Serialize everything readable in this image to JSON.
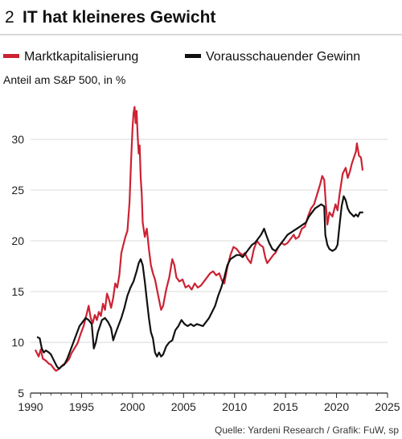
{
  "figure": {
    "number": "2",
    "title": "IT hat kleineres Gewicht",
    "source": "Quelle: Yardeni Research / Grafik: FuW, sp"
  },
  "colors": {
    "market_cap": "#cc2233",
    "forward_earnings": "#111111",
    "grid": "#d8d8d8",
    "axis": "#222222"
  },
  "chart_data": {
    "type": "line",
    "title": "IT hat kleineres Gewicht",
    "ylabel": "Anteil am S&P 500, in %",
    "xlabel": "",
    "xlim": [
      1990,
      2025
    ],
    "ylim": [
      5,
      35
    ],
    "xticks": [
      1990,
      1995,
      2000,
      2005,
      2010,
      2015,
      2020,
      2025
    ],
    "yticks": [
      5,
      10,
      15,
      20,
      25,
      30
    ],
    "grid": "horizontal",
    "legend_position": "top",
    "series": [
      {
        "name": "Marktkapitalisierung",
        "color": "#cc2233",
        "points": [
          [
            1990.5,
            9.2
          ],
          [
            1990.8,
            8.6
          ],
          [
            1991.0,
            9.3
          ],
          [
            1991.2,
            8.4
          ],
          [
            1991.5,
            8.2
          ],
          [
            1991.8,
            7.9
          ],
          [
            1992.0,
            7.8
          ],
          [
            1992.3,
            7.4
          ],
          [
            1992.5,
            7.2
          ],
          [
            1992.8,
            7.4
          ],
          [
            1993.0,
            7.6
          ],
          [
            1993.2,
            7.8
          ],
          [
            1993.5,
            8.0
          ],
          [
            1993.8,
            8.4
          ],
          [
            1994.0,
            8.9
          ],
          [
            1994.3,
            9.4
          ],
          [
            1994.6,
            9.9
          ],
          [
            1994.9,
            10.8
          ],
          [
            1995.2,
            11.6
          ],
          [
            1995.5,
            12.8
          ],
          [
            1995.7,
            13.6
          ],
          [
            1995.9,
            12.4
          ],
          [
            1996.1,
            11.9
          ],
          [
            1996.3,
            12.7
          ],
          [
            1996.5,
            12.2
          ],
          [
            1996.7,
            13.0
          ],
          [
            1996.9,
            12.6
          ],
          [
            1997.1,
            13.8
          ],
          [
            1997.3,
            13.2
          ],
          [
            1997.5,
            14.8
          ],
          [
            1997.7,
            14.2
          ],
          [
            1997.9,
            13.4
          ],
          [
            1998.1,
            14.4
          ],
          [
            1998.3,
            15.8
          ],
          [
            1998.5,
            15.4
          ],
          [
            1998.7,
            16.6
          ],
          [
            1998.9,
            18.8
          ],
          [
            1999.1,
            19.6
          ],
          [
            1999.3,
            20.4
          ],
          [
            1999.5,
            21.0
          ],
          [
            1999.7,
            23.8
          ],
          [
            1999.85,
            27.8
          ],
          [
            2000.0,
            31.2
          ],
          [
            2000.1,
            32.6
          ],
          [
            2000.2,
            33.2
          ],
          [
            2000.3,
            31.6
          ],
          [
            2000.4,
            32.8
          ],
          [
            2000.5,
            30.4
          ],
          [
            2000.6,
            28.6
          ],
          [
            2000.7,
            29.4
          ],
          [
            2000.8,
            26.2
          ],
          [
            2000.9,
            24.6
          ],
          [
            2001.0,
            21.8
          ],
          [
            2001.2,
            20.4
          ],
          [
            2001.4,
            21.2
          ],
          [
            2001.6,
            19.2
          ],
          [
            2001.8,
            17.6
          ],
          [
            2002.0,
            16.8
          ],
          [
            2002.2,
            16.2
          ],
          [
            2002.4,
            15.2
          ],
          [
            2002.6,
            14.2
          ],
          [
            2002.8,
            13.2
          ],
          [
            2003.0,
            13.6
          ],
          [
            2003.3,
            15.2
          ],
          [
            2003.6,
            16.4
          ],
          [
            2003.9,
            18.2
          ],
          [
            2004.1,
            17.6
          ],
          [
            2004.3,
            16.4
          ],
          [
            2004.6,
            16.0
          ],
          [
            2004.9,
            16.2
          ],
          [
            2005.2,
            15.4
          ],
          [
            2005.5,
            15.6
          ],
          [
            2005.8,
            15.2
          ],
          [
            2006.1,
            15.8
          ],
          [
            2006.4,
            15.4
          ],
          [
            2006.7,
            15.6
          ],
          [
            2007.0,
            16.0
          ],
          [
            2007.3,
            16.4
          ],
          [
            2007.6,
            16.8
          ],
          [
            2007.9,
            17.0
          ],
          [
            2008.2,
            16.6
          ],
          [
            2008.5,
            16.8
          ],
          [
            2008.8,
            16.0
          ],
          [
            2009.0,
            15.8
          ],
          [
            2009.3,
            17.4
          ],
          [
            2009.6,
            18.6
          ],
          [
            2009.9,
            19.4
          ],
          [
            2010.2,
            19.2
          ],
          [
            2010.5,
            18.8
          ],
          [
            2010.8,
            18.6
          ],
          [
            2011.0,
            18.8
          ],
          [
            2011.3,
            18.2
          ],
          [
            2011.6,
            17.8
          ],
          [
            2011.9,
            19.2
          ],
          [
            2012.2,
            20.0
          ],
          [
            2012.5,
            19.6
          ],
          [
            2012.8,
            19.4
          ],
          [
            2013.0,
            18.4
          ],
          [
            2013.2,
            17.8
          ],
          [
            2013.5,
            18.2
          ],
          [
            2013.8,
            18.6
          ],
          [
            2014.0,
            18.8
          ],
          [
            2014.3,
            19.4
          ],
          [
            2014.6,
            19.8
          ],
          [
            2014.9,
            19.6
          ],
          [
            2015.2,
            19.8
          ],
          [
            2015.5,
            20.2
          ],
          [
            2015.8,
            20.6
          ],
          [
            2016.0,
            20.2
          ],
          [
            2016.3,
            20.4
          ],
          [
            2016.6,
            21.2
          ],
          [
            2016.9,
            21.4
          ],
          [
            2017.2,
            22.4
          ],
          [
            2017.5,
            23.2
          ],
          [
            2017.8,
            23.6
          ],
          [
            2018.1,
            24.6
          ],
          [
            2018.4,
            25.6
          ],
          [
            2018.6,
            26.4
          ],
          [
            2018.8,
            26.0
          ],
          [
            2018.95,
            23.6
          ],
          [
            2019.1,
            21.6
          ],
          [
            2019.3,
            22.8
          ],
          [
            2019.6,
            22.4
          ],
          [
            2019.9,
            23.6
          ],
          [
            2020.1,
            23.0
          ],
          [
            2020.3,
            24.6
          ],
          [
            2020.6,
            26.6
          ],
          [
            2020.9,
            27.2
          ],
          [
            2021.1,
            26.2
          ],
          [
            2021.3,
            26.8
          ],
          [
            2021.5,
            27.6
          ],
          [
            2021.7,
            28.2
          ],
          [
            2021.9,
            28.8
          ],
          [
            2022.0,
            29.6
          ],
          [
            2022.2,
            28.4
          ],
          [
            2022.4,
            28.2
          ],
          [
            2022.55,
            27.0
          ]
        ]
      },
      {
        "name": "Vorausschauender Gewinn",
        "color": "#111111",
        "points": [
          [
            1990.7,
            10.5
          ],
          [
            1990.9,
            10.4
          ],
          [
            1991.1,
            9.4
          ],
          [
            1991.3,
            9.0
          ],
          [
            1991.5,
            9.2
          ],
          [
            1991.8,
            9.0
          ],
          [
            1992.0,
            8.8
          ],
          [
            1992.2,
            8.4
          ],
          [
            1992.4,
            8.0
          ],
          [
            1992.6,
            7.6
          ],
          [
            1992.8,
            7.4
          ],
          [
            1993.0,
            7.6
          ],
          [
            1993.3,
            7.8
          ],
          [
            1993.6,
            8.4
          ],
          [
            1993.9,
            9.2
          ],
          [
            1994.2,
            10.0
          ],
          [
            1994.5,
            10.8
          ],
          [
            1994.8,
            11.6
          ],
          [
            1995.1,
            12.0
          ],
          [
            1995.4,
            12.4
          ],
          [
            1995.7,
            12.2
          ],
          [
            1996.0,
            11.8
          ],
          [
            1996.2,
            9.4
          ],
          [
            1996.4,
            10.0
          ],
          [
            1996.6,
            11.0
          ],
          [
            1996.8,
            11.6
          ],
          [
            1997.0,
            12.2
          ],
          [
            1997.3,
            12.4
          ],
          [
            1997.6,
            12.0
          ],
          [
            1997.9,
            11.4
          ],
          [
            1998.1,
            10.2
          ],
          [
            1998.3,
            10.8
          ],
          [
            1998.6,
            11.6
          ],
          [
            1998.9,
            12.4
          ],
          [
            1999.2,
            13.4
          ],
          [
            1999.5,
            14.6
          ],
          [
            1999.8,
            15.4
          ],
          [
            2000.1,
            16.0
          ],
          [
            2000.4,
            17.0
          ],
          [
            2000.6,
            17.8
          ],
          [
            2000.8,
            18.2
          ],
          [
            2001.0,
            17.6
          ],
          [
            2001.2,
            16.0
          ],
          [
            2001.4,
            14.2
          ],
          [
            2001.6,
            12.4
          ],
          [
            2001.8,
            11.0
          ],
          [
            2002.0,
            10.4
          ],
          [
            2002.2,
            9.0
          ],
          [
            2002.4,
            8.6
          ],
          [
            2002.6,
            9.0
          ],
          [
            2002.8,
            8.6
          ],
          [
            2003.0,
            8.8
          ],
          [
            2003.3,
            9.6
          ],
          [
            2003.6,
            10.0
          ],
          [
            2003.9,
            10.2
          ],
          [
            2004.2,
            11.2
          ],
          [
            2004.5,
            11.6
          ],
          [
            2004.8,
            12.2
          ],
          [
            2005.1,
            11.8
          ],
          [
            2005.4,
            11.6
          ],
          [
            2005.7,
            11.8
          ],
          [
            2006.0,
            11.6
          ],
          [
            2006.3,
            11.8
          ],
          [
            2006.6,
            11.7
          ],
          [
            2006.9,
            11.6
          ],
          [
            2007.2,
            12.0
          ],
          [
            2007.5,
            12.4
          ],
          [
            2007.8,
            13.0
          ],
          [
            2008.1,
            13.6
          ],
          [
            2008.4,
            14.6
          ],
          [
            2008.7,
            15.4
          ],
          [
            2009.0,
            16.4
          ],
          [
            2009.3,
            17.6
          ],
          [
            2009.6,
            18.2
          ],
          [
            2009.9,
            18.4
          ],
          [
            2010.2,
            18.6
          ],
          [
            2010.5,
            18.6
          ],
          [
            2010.8,
            18.4
          ],
          [
            2011.1,
            18.8
          ],
          [
            2011.4,
            19.2
          ],
          [
            2011.7,
            19.6
          ],
          [
            2012.0,
            19.8
          ],
          [
            2012.3,
            20.2
          ],
          [
            2012.6,
            20.6
          ],
          [
            2012.9,
            21.2
          ],
          [
            2013.1,
            20.6
          ],
          [
            2013.4,
            19.8
          ],
          [
            2013.7,
            19.2
          ],
          [
            2014.0,
            19.0
          ],
          [
            2014.3,
            19.4
          ],
          [
            2014.6,
            19.8
          ],
          [
            2014.9,
            20.2
          ],
          [
            2015.2,
            20.6
          ],
          [
            2015.5,
            20.8
          ],
          [
            2015.8,
            21.0
          ],
          [
            2016.1,
            21.2
          ],
          [
            2016.4,
            21.4
          ],
          [
            2016.7,
            21.6
          ],
          [
            2017.0,
            21.8
          ],
          [
            2017.3,
            22.4
          ],
          [
            2017.6,
            22.8
          ],
          [
            2017.9,
            23.2
          ],
          [
            2018.2,
            23.4
          ],
          [
            2018.5,
            23.6
          ],
          [
            2018.8,
            23.4
          ],
          [
            2018.9,
            20.6
          ],
          [
            2019.1,
            19.6
          ],
          [
            2019.3,
            19.2
          ],
          [
            2019.6,
            19.0
          ],
          [
            2019.9,
            19.2
          ],
          [
            2020.1,
            19.6
          ],
          [
            2020.3,
            21.6
          ],
          [
            2020.5,
            23.4
          ],
          [
            2020.7,
            24.4
          ],
          [
            2020.9,
            24.0
          ],
          [
            2021.1,
            23.2
          ],
          [
            2021.3,
            22.8
          ],
          [
            2021.5,
            22.6
          ],
          [
            2021.7,
            22.4
          ],
          [
            2021.9,
            22.6
          ],
          [
            2022.1,
            22.4
          ],
          [
            2022.3,
            22.8
          ],
          [
            2022.55,
            22.8
          ]
        ]
      }
    ]
  }
}
